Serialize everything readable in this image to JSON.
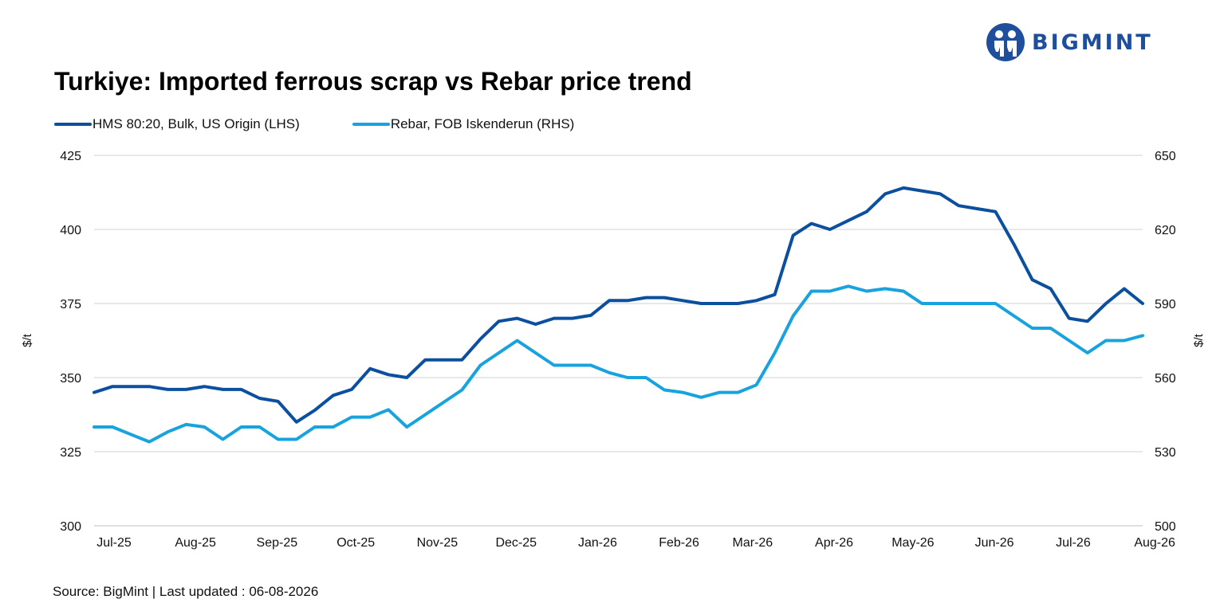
{
  "brand": {
    "name": "BIGMINT",
    "color": "#1f4e9c"
  },
  "chart_data": {
    "type": "line",
    "title": "Turkiye: Imported ferrous scrap vs Rebar price trend",
    "ylabel_left": "$/t",
    "ylabel_right": "$/t",
    "ylim_left": [
      300,
      425
    ],
    "ylim_right": [
      500,
      650
    ],
    "yticks_left": [
      "300",
      "325",
      "350",
      "375",
      "400",
      "425"
    ],
    "yticks_right": [
      "500",
      "530",
      "560",
      "590",
      "620",
      "650"
    ],
    "x_tick_labels": [
      "Jul-25",
      "Aug-25",
      "Sep-25",
      "Oct-25",
      "Nov-25",
      "Dec-25",
      "Jan-26",
      "Feb-26",
      "Mar-26",
      "Apr-26",
      "May-26",
      "Jun-26",
      "Jul-26",
      "Aug-26"
    ],
    "x": [
      "2025-07-01",
      "2025-07-08",
      "2025-07-15",
      "2025-07-22",
      "2025-07-29",
      "2025-08-05",
      "2025-08-12",
      "2025-08-19",
      "2025-08-26",
      "2025-09-02",
      "2025-09-09",
      "2025-09-16",
      "2025-09-23",
      "2025-09-30",
      "2025-10-07",
      "2025-10-14",
      "2025-10-21",
      "2025-10-28",
      "2025-11-04",
      "2025-11-11",
      "2025-11-18",
      "2025-11-25",
      "2025-12-02",
      "2025-12-09",
      "2025-12-16",
      "2025-12-23",
      "2025-12-30",
      "2026-01-06",
      "2026-01-13",
      "2026-01-20",
      "2026-01-27",
      "2026-02-03",
      "2026-02-10",
      "2026-02-17",
      "2026-02-24",
      "2026-03-03",
      "2026-03-10",
      "2026-03-17",
      "2026-03-24",
      "2026-03-31",
      "2026-04-07",
      "2026-04-14",
      "2026-04-21",
      "2026-04-28",
      "2026-05-05",
      "2026-05-12",
      "2026-05-19",
      "2026-05-26",
      "2026-06-02",
      "2026-06-09",
      "2026-06-16",
      "2026-06-23",
      "2026-06-30",
      "2026-07-07",
      "2026-07-14",
      "2026-07-21",
      "2026-07-28",
      "2026-08-04"
    ],
    "series": [
      {
        "name": "HMS 80:20, Bulk, US Origin (LHS)",
        "axis": "left",
        "color": "#0b4f9e",
        "values": [
          345,
          347,
          347,
          347,
          346,
          346,
          347,
          346,
          346,
          343,
          342,
          335,
          339,
          344,
          346,
          353,
          351,
          350,
          356,
          356,
          356,
          363,
          369,
          370,
          368,
          370,
          370,
          371,
          376,
          376,
          377,
          377,
          376,
          375,
          375,
          375,
          376,
          378,
          398,
          402,
          400,
          403,
          406,
          412,
          414,
          413,
          412,
          408,
          407,
          406,
          395,
          383,
          380,
          370,
          369,
          375,
          380,
          375
        ]
      },
      {
        "name": "Rebar, FOB Iskenderun (RHS)",
        "axis": "right",
        "color": "#18a3df",
        "values": [
          540,
          540,
          537,
          534,
          538,
          541,
          540,
          535,
          540,
          540,
          535,
          535,
          540,
          540,
          544,
          544,
          547,
          540,
          545,
          550,
          555,
          565,
          570,
          575,
          570,
          565,
          565,
          565,
          562,
          560,
          560,
          555,
          554,
          552,
          554,
          554,
          557,
          570,
          585,
          595,
          595,
          597,
          595,
          596,
          595,
          590,
          590,
          590,
          590,
          590,
          585,
          580,
          580,
          575,
          570,
          575,
          575,
          577
        ]
      }
    ],
    "grid": "horizontal",
    "legend_position": "top-left"
  },
  "source_text": "Source: BigMint | Last updated : 06-08-2026"
}
